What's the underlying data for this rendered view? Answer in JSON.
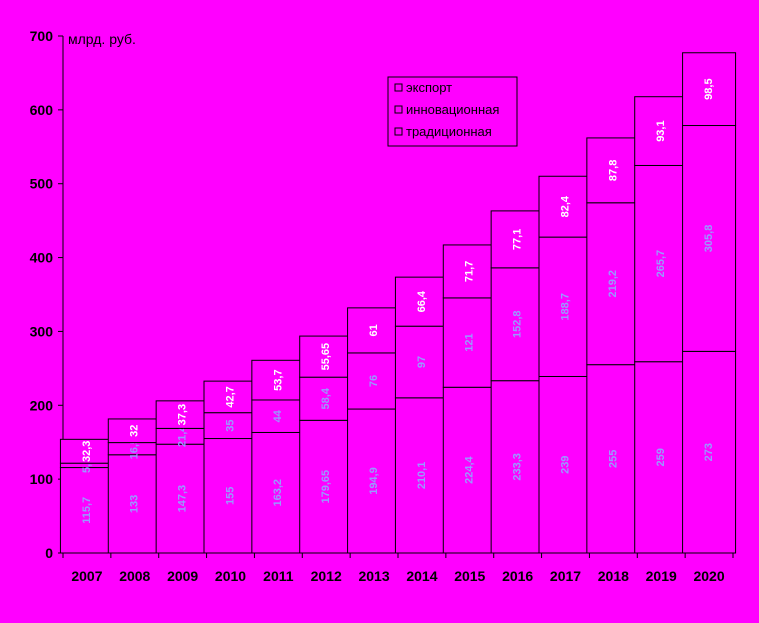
{
  "chart_data": {
    "type": "bar",
    "stacked": true,
    "unit_label": "млрд. руб.",
    "categories": [
      "2007",
      "2008",
      "2009",
      "2010",
      "2011",
      "2012",
      "2013",
      "2014",
      "2015",
      "2016",
      "2017",
      "2018",
      "2019",
      "2020"
    ],
    "series": [
      {
        "name": "традиционная",
        "color": "#ff00ff",
        "values": [
          115.7,
          133,
          147.3,
          155,
          163.2,
          179.65,
          194.9,
          210.1,
          224.4,
          233.3,
          239,
          255,
          259,
          273
        ],
        "labels": [
          "115,7",
          "133",
          "147,3",
          "155",
          "163,2",
          "179,65",
          "194,9",
          "210,1",
          "224,4",
          "233,3",
          "239",
          "255",
          "259",
          "273"
        ]
      },
      {
        "name": "инновационная",
        "color": "#ff00ff",
        "values": [
          5.9,
          16.5,
          21.4,
          35,
          44,
          58.4,
          76,
          97,
          121,
          152.8,
          188.7,
          219.2,
          265.7,
          305.8
        ],
        "labels": [
          "5,9",
          "16,5",
          "21,4",
          "35",
          "44",
          "58,4",
          "76",
          "97",
          "121",
          "152,8",
          "188,7",
          "219,2",
          "265,7",
          "305,8"
        ]
      },
      {
        "name": "экспорт",
        "color": "#ff00ff",
        "values": [
          32.3,
          32,
          37.3,
          42.7,
          53.7,
          55.65,
          61,
          66.4,
          71.7,
          77.1,
          82.4,
          87.8,
          93.1,
          98.5
        ],
        "labels": [
          "32,3",
          "32",
          "37,3",
          "42,7",
          "53,7",
          "55,65",
          "61",
          "66,4",
          "71,7",
          "77,1",
          "82,4",
          "87,8",
          "93,1",
          "98,5"
        ]
      }
    ],
    "ylim": [
      0,
      700
    ],
    "yticks": [
      "0",
      "100",
      "200",
      "300",
      "400",
      "500",
      "600",
      "700"
    ],
    "grid": false,
    "legend_position": "top-right"
  }
}
